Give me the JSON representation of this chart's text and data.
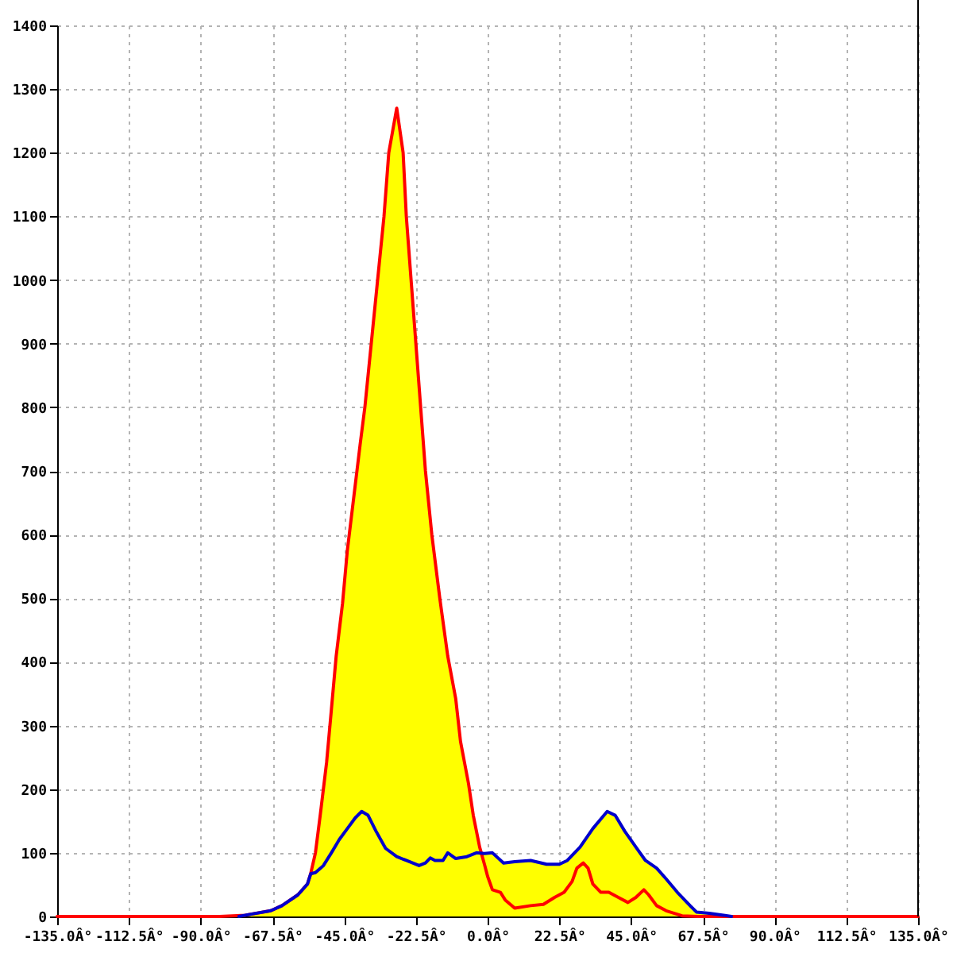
{
  "chart_data": {
    "type": "area",
    "xlim": [
      -135,
      135
    ],
    "ylim": [
      0,
      1400
    ],
    "xticks": [
      {
        "value": -135,
        "label": "-135.0Â°"
      },
      {
        "value": -112.5,
        "label": "-112.5Â°"
      },
      {
        "value": -90,
        "label": "-90.0Â°"
      },
      {
        "value": -67.5,
        "label": "-67.5Â°"
      },
      {
        "value": -45,
        "label": "-45.0Â°"
      },
      {
        "value": -22.5,
        "label": "-22.5Â°"
      },
      {
        "value": 0,
        "label": "0.0Â°"
      },
      {
        "value": 22.5,
        "label": "22.5Â°"
      },
      {
        "value": 45,
        "label": "45.0Â°"
      },
      {
        "value": 67.5,
        "label": "67.5Â°"
      },
      {
        "value": 90,
        "label": "90.0Â°"
      },
      {
        "value": 112.5,
        "label": "112.5Â°"
      },
      {
        "value": 135,
        "label": "135.0Â°"
      }
    ],
    "yticks": [
      0,
      100,
      200,
      300,
      400,
      500,
      600,
      700,
      800,
      900,
      1000,
      1100,
      1200,
      1300,
      1400
    ],
    "grid": true,
    "series": [
      {
        "color": "#ffff00",
        "x": [
          -84,
          -76,
          -68,
          -64.5,
          -59.5,
          -56.5,
          -55.5,
          -54,
          -52.5,
          -50.5,
          -49,
          -47.5,
          -45.5,
          -44,
          -42,
          -40,
          -38.5,
          -36.5,
          -34.5,
          -32.5,
          -31,
          -28.5,
          -26.5,
          -25.5,
          -24,
          -22.5,
          -21,
          -19.5,
          -17.5,
          -15,
          -12.5,
          -10,
          -8.5,
          -6,
          -4.5,
          -2.5,
          -2,
          -1,
          1.5,
          5,
          8.5,
          13.5,
          18.5,
          22.5,
          25,
          29,
          33,
          37.5,
          40,
          43,
          46.5,
          49.5,
          53,
          56,
          59.5,
          63.5,
          65.5,
          69.5,
          74,
          76.5
        ],
        "values": [
          0,
          2,
          9,
          17,
          34,
          51,
          67,
          100,
          159,
          242,
          325,
          409,
          492,
          575,
          658,
          741,
          800,
          900,
          1000,
          1100,
          1200,
          1270,
          1200,
          1100,
          1000,
          900,
          800,
          700,
          600,
          500,
          409,
          342,
          275,
          209,
          159,
          109,
          100,
          99,
          100,
          84,
          86,
          88,
          82,
          82,
          88,
          109,
          138,
          165,
          159,
          134,
          109,
          88,
          76,
          59,
          38,
          17,
          7,
          5,
          2,
          0
        ]
      },
      {
        "type": "line",
        "color": "#ff0000",
        "x": [
          -135,
          -84,
          -76,
          -68,
          -64.5,
          -59.5,
          -56.5,
          -55.5,
          -54,
          -52.5,
          -50.5,
          -49,
          -47.5,
          -45.5,
          -44,
          -42,
          -40,
          -38.5,
          -36.5,
          -34.5,
          -32.5,
          -31,
          -28.5,
          -26.5,
          -25.5,
          -24,
          -22.5,
          -21,
          -19.5,
          -17.5,
          -15,
          -12.5,
          -10,
          -8.5,
          -6,
          -4.5,
          -2.5,
          -1,
          0,
          1.5,
          4,
          5.5,
          8.5,
          13.5,
          17.5,
          21,
          24,
          26.5,
          28,
          30,
          31.5,
          33,
          35.5,
          38,
          41,
          44,
          46.5,
          49,
          50.5,
          53,
          56,
          61,
          66,
          135
        ],
        "values": [
          0,
          0,
          2,
          9,
          17,
          34,
          51,
          67,
          100,
          159,
          242,
          325,
          409,
          492,
          575,
          658,
          741,
          800,
          900,
          1000,
          1100,
          1200,
          1270,
          1200,
          1100,
          1000,
          900,
          800,
          700,
          600,
          500,
          409,
          342,
          275,
          209,
          159,
          109,
          82,
          63,
          42,
          38,
          26,
          13,
          17,
          19,
          30,
          38,
          55,
          76,
          84,
          76,
          51,
          38,
          38,
          30,
          22,
          30,
          42,
          34,
          17,
          9,
          1,
          0,
          0
        ]
      },
      {
        "type": "line",
        "color": "#0000cc",
        "x": [
          -78,
          -76,
          -68,
          -64.5,
          -59.5,
          -56.5,
          -55.5,
          -54,
          -51.5,
          -49,
          -46.5,
          -44,
          -41.5,
          -39.5,
          -37.5,
          -35,
          -32,
          -28.5,
          -25.5,
          -21.5,
          -19.5,
          -18,
          -16.5,
          -14,
          -12.5,
          -10,
          -6.5,
          -3.5,
          -1,
          1.5,
          5,
          8.5,
          13.5,
          18.5,
          22.5,
          25,
          29,
          33,
          37.5,
          40,
          43,
          46.5,
          49.5,
          53,
          56,
          59.5,
          63.5,
          65.5,
          69.5,
          74,
          76.5
        ],
        "values": [
          0,
          2,
          9,
          17,
          34,
          51,
          67,
          69,
          80,
          100,
          121,
          138,
          155,
          165,
          159,
          134,
          107,
          94,
          88,
          80,
          84,
          92,
          88,
          88,
          100,
          91,
          94,
          100,
          99,
          100,
          84,
          86,
          88,
          82,
          82,
          88,
          109,
          138,
          165,
          159,
          134,
          109,
          88,
          76,
          59,
          38,
          17,
          7,
          5,
          2,
          0
        ]
      }
    ]
  }
}
